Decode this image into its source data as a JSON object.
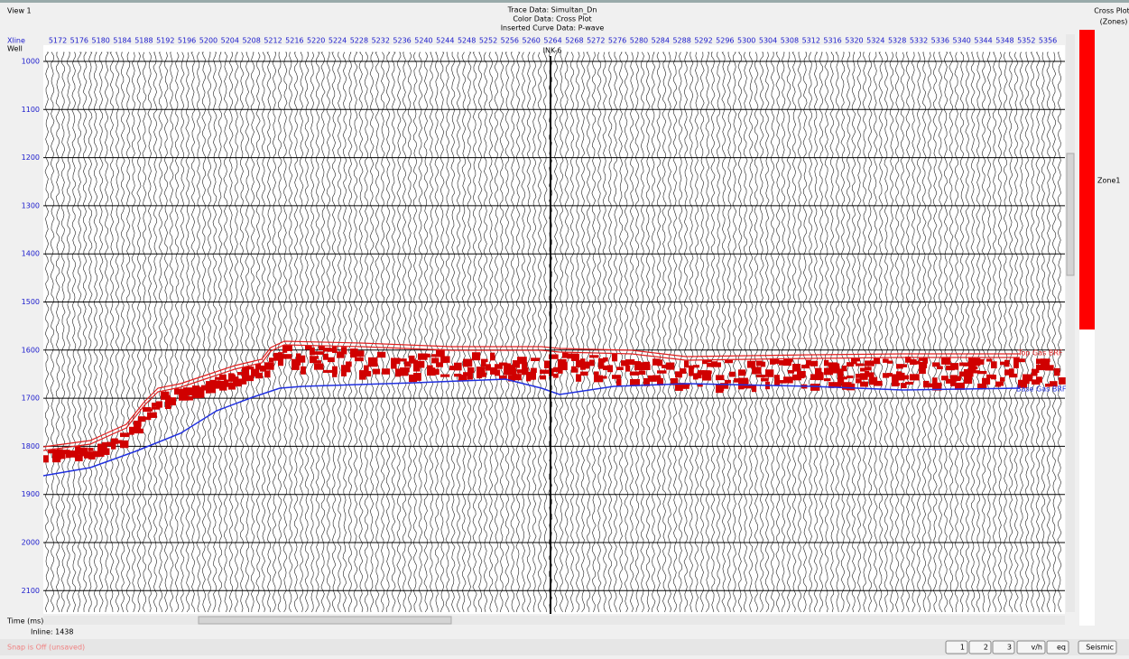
{
  "view_title": "View 1",
  "header": {
    "trace_data": "Trace Data: Simultan_Dn",
    "color_data": "Color Data: Cross Plot",
    "curve_data": "Inserted Curve Data: P-wave"
  },
  "axes": {
    "xline_label": "Xline",
    "well_label": "Well",
    "time_label": "Time (ms)",
    "xlines": [
      5172,
      5176,
      5180,
      5184,
      5188,
      5192,
      5196,
      5200,
      5204,
      5208,
      5212,
      5216,
      5220,
      5224,
      5228,
      5232,
      5236,
      5240,
      5244,
      5248,
      5252,
      5256,
      5260,
      5264,
      5268,
      5272,
      5276,
      5280,
      5284,
      5288,
      5292,
      5296,
      5300,
      5304,
      5308,
      5312,
      5316,
      5320,
      5324,
      5328,
      5332,
      5336,
      5340,
      5344,
      5348,
      5352,
      5356
    ],
    "times": [
      1000,
      1100,
      1200,
      1300,
      1400,
      1500,
      1600,
      1700,
      1800,
      1900,
      2000,
      2100
    ]
  },
  "well_name": "INK-6",
  "horizons": {
    "top": "Top Gas BRF",
    "base": "Base Gas BRF"
  },
  "legend": {
    "title": "Cross Plot",
    "subtitle": "(Zones)",
    "zone": "Zone1"
  },
  "inline": "Inline: 1438",
  "status": "Snap is Off (unsaved)",
  "buttons": [
    "1",
    "2",
    "3",
    "v/h",
    "eq",
    "Seismic"
  ]
}
